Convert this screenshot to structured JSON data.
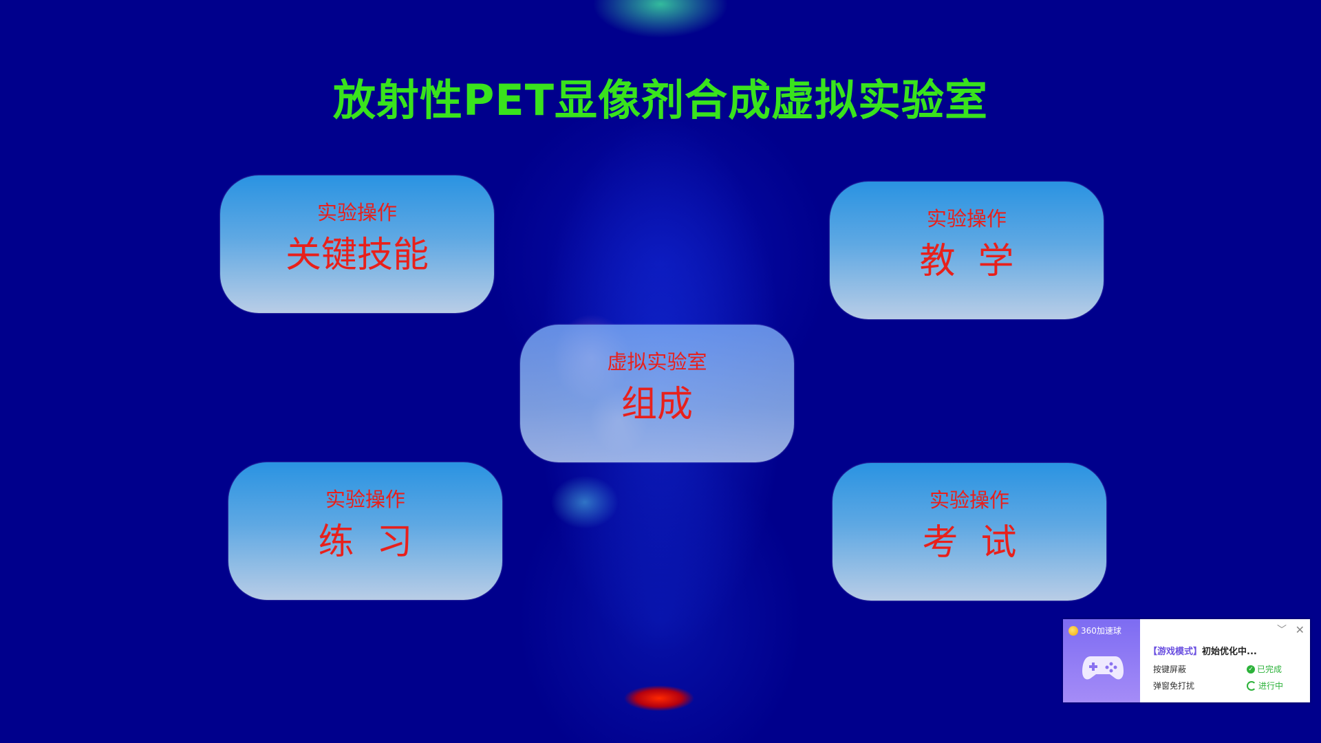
{
  "title": "放射性PET显像剂合成虚拟实验室",
  "cards": [
    {
      "sub": "实验操作",
      "main": "关键技能"
    },
    {
      "sub": "实验操作",
      "main": "教  学"
    },
    {
      "sub": "虚拟实验室",
      "main": "组成"
    },
    {
      "sub": "实验操作",
      "main": "练  习"
    },
    {
      "sub": "实验操作",
      "main": "考  试"
    }
  ],
  "popup": {
    "brand": "360加速球",
    "mode_label": "【游戏模式】",
    "headline": "初始优化中...",
    "rows": [
      {
        "label": "按键屏蔽",
        "status": "已完成"
      },
      {
        "label": "弹窗免打扰",
        "status": "进行中"
      }
    ],
    "status_colors": {
      "done": "#2cb23a",
      "running": "#2cb23a"
    }
  },
  "colors": {
    "title": "#39e31d",
    "card_text": "#e8201b",
    "background": "#00008c"
  }
}
